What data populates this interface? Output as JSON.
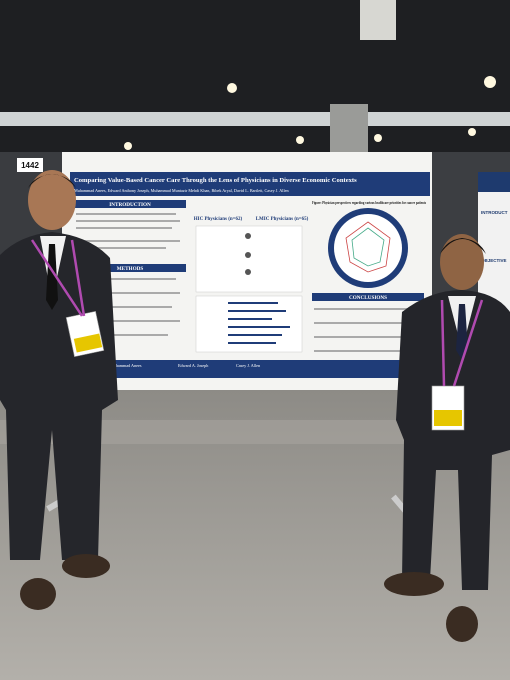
{
  "booth_number": "1442",
  "poster": {
    "title": "Comparing Value-Based Cancer Care Through the Lens of Physicians in Diverse Economic Contexts",
    "authors": "Muhammad Anees, Edward Anthony Joseph, Muhammad Muntazir Mehdi Khan, Bibek Aryal, David L. Bartlett, Casey J. Allen",
    "sections": [
      "INTRODUCTION",
      "METHODS",
      "CONCLUSIONS"
    ],
    "columns": [
      "HIC Physicians (n=62)",
      "LMIC Physicians (n=65)"
    ],
    "figure_caption": "Figure: Physician perspectives regarding various healthcare priorities for cancer patients",
    "footer_names": [
      "Muhammad Anees",
      "Edward A. Joseph",
      "Casey J. Allen"
    ]
  },
  "neighbor_poster": {
    "sections": [
      "INTRODUCT",
      "OBJECTIVE"
    ]
  }
}
